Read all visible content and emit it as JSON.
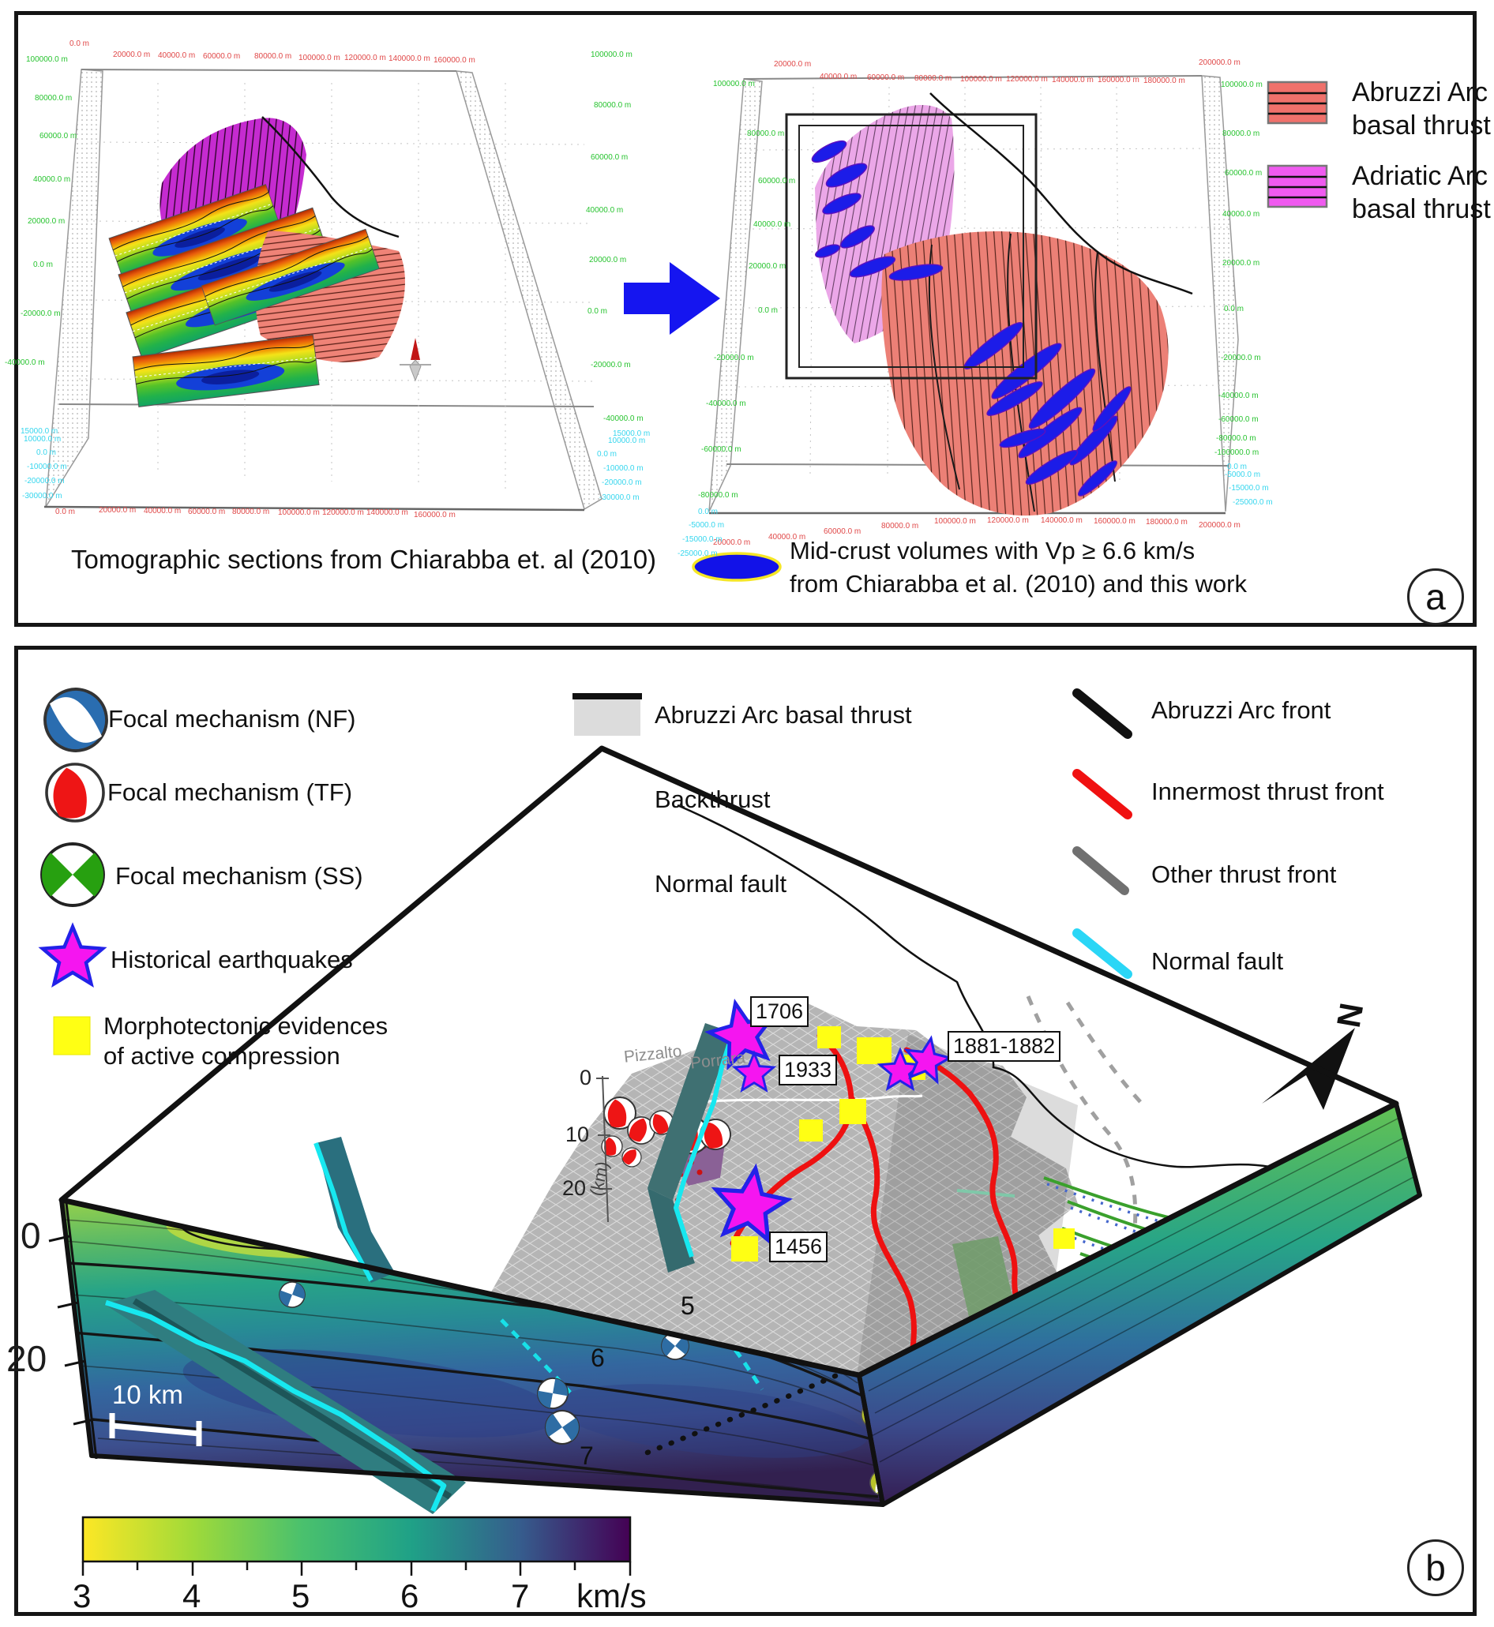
{
  "panel_a": {
    "letter": "a",
    "left_plot": {
      "caption": "Tomographic sections from Chiarabba et. al (2010)",
      "axis_top_red": [
        "0.0 m",
        "20000.0 m",
        "40000.0 m",
        "60000.0 m",
        "80000.0 m",
        "100000.0 m",
        "120000.0 m",
        "140000.0 m",
        "160000.0 m"
      ],
      "axis_bottom_red": [
        "0.0 m",
        "20000.0 m",
        "40000.0 m",
        "60000.0 m",
        "80000.0 m",
        "100000.0 m",
        "120000.0 m",
        "140000.0 m",
        "160000.0 m"
      ],
      "axis_left_green": [
        "100000.0 m",
        "80000.0 m",
        "60000.0 m",
        "40000.0 m",
        "20000.0 m",
        "0.0 m",
        "-20000.0 m",
        "-40000.0 m"
      ],
      "axis_right_green": [
        "100000.0 m",
        "80000.0 m",
        "60000.0 m",
        "40000.0 m",
        "20000.0 m",
        "0.0 m",
        "-20000.0 m",
        "-40000.0 m"
      ],
      "axis_left_cyan": [
        "15000.0 m",
        "10000.0 m",
        "0.0 m",
        "-10000.0 m",
        "-20000.0 m",
        "-30000.0 m"
      ],
      "axis_right_cyan": [
        "15000.0 m",
        "10000.0 m",
        "0.0 m",
        "-10000.0 m",
        "-20000.0 m",
        "-30000.0 m"
      ]
    },
    "right_plot": {
      "axis_top_red": [
        "20000.0 m",
        "40000.0 m",
        "60000.0 m",
        "80000.0 m",
        "100000.0 m",
        "120000.0 m",
        "140000.0 m",
        "160000.0 m",
        "180000.0 m",
        "200000.0 m"
      ],
      "axis_bottom_red": [
        "20000.0 m",
        "40000.0 m",
        "60000.0 m",
        "80000.0 m",
        "100000.0 m",
        "120000.0 m",
        "140000.0 m",
        "160000.0 m",
        "180000.0 m",
        "200000.0 m"
      ],
      "axis_left_green": [
        "100000.0 m",
        "80000.0 m",
        "60000.0 m",
        "40000.0 m",
        "20000.0 m",
        "0.0 m",
        "-20000.0 m",
        "-40000.0 m",
        "-60000.0 m",
        "-80000.0 m"
      ],
      "axis_right_green": [
        "100000.0 m",
        "80000.0 m",
        "60000.0 m",
        "40000.0 m",
        "20000.0 m",
        "0.0 m",
        "-20000.0 m",
        "-40000.0 m",
        "-60000.0 m",
        "-80000.0 m",
        "-100000.0 m"
      ],
      "axis_left_cyan": [
        "0.0 m",
        "-5000.0 m",
        "-15000.0 m",
        "-25000.0 m"
      ],
      "axis_right_cyan": [
        "0.0 m",
        "-5000.0 m",
        "-15000.0 m",
        "-25000.0 m"
      ]
    },
    "legend": {
      "items": [
        {
          "line1": "Abruzzi Arc",
          "line2": "basal thrust"
        },
        {
          "line1": "Adriatic Arc",
          "line2": "basal thrust"
        }
      ]
    },
    "vp_caption": {
      "line1": "Mid-crust volumes with Vp ≥ 6.6 km/s",
      "line2": "from Chiarabba et al. (2010) and this work"
    }
  },
  "panel_b": {
    "letter": "b",
    "legend_symbols": {
      "nf": "Focal mechanism (NF)",
      "tf": "Focal mechanism (TF)",
      "ss": "Focal mechanism (SS)",
      "hist": "Historical earthquakes",
      "morpho1": "Morphotectonic evidences",
      "morpho2": "of active compression"
    },
    "legend_surfaces": {
      "basal": "Abruzzi Arc basal thrust",
      "back": "Backthrust",
      "normal": "Normal fault"
    },
    "legend_lines": {
      "arc_front": "Abruzzi Arc front",
      "innermost": "Innermost thrust front",
      "other": "Other thrust front",
      "normal": "Normal fault"
    },
    "block": {
      "earthquakes": [
        "1706",
        "1933",
        "1456",
        "1881-1882"
      ],
      "places": [
        "Pizzalto",
        "Porrara"
      ],
      "depth_ticks_top": [
        "0",
        "10",
        "20"
      ],
      "depth_unit": "(km)",
      "depth_ticks_front": [
        "0",
        "20"
      ],
      "contour_labels": [
        "5",
        "6",
        "7"
      ],
      "scale_bar": "10 km",
      "north": "N"
    },
    "colorbar": {
      "ticks": [
        "3",
        "4",
        "5",
        "6",
        "7"
      ],
      "unit": "km/s"
    }
  },
  "colors": {
    "arrow_blue": "#1515f0",
    "abruzzi_salmon": "#ef8076",
    "adriatic_magenta": "#e94fe0",
    "backthrust_mauve": "#a98bae",
    "normal_fault_teal": "#5aa7a7",
    "normal_fault_cyan": "#2ad6f0",
    "innermost_red": "#ee1111",
    "other_gray": "#707070",
    "star_magenta": "#f515f0",
    "morpho_yellow": "#ffff14",
    "vp_blue": "#1212e8"
  }
}
